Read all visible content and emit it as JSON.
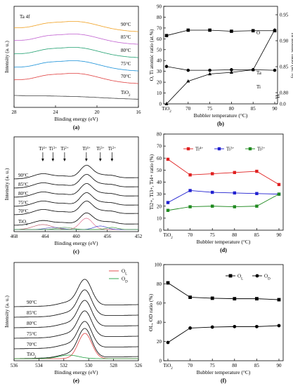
{
  "chart_data": [
    {
      "id": "a",
      "type": "line",
      "panel_label": "(a)",
      "xlabel": "Binding energy (eV)",
      "ylabel": "Intensity (a. u.)",
      "xlim": [
        28,
        16
      ],
      "xticks": [
        28,
        24,
        20,
        16
      ],
      "annotation": "Ta 4f",
      "grid": false,
      "series": [
        {
          "name": "90°C",
          "color": "#f0a020",
          "peak_eV": 22.0,
          "peak_height": 0.55
        },
        {
          "name": "85°C",
          "color": "#c060d0",
          "peak_eV": 22.0,
          "peak_height": 0.55
        },
        {
          "name": "80°C",
          "color": "#20a070",
          "peak_eV": 22.0,
          "peak_height": 0.55
        },
        {
          "name": "75°C",
          "color": "#1890d8",
          "peak_eV": 22.0,
          "peak_height": 0.55
        },
        {
          "name": "70°C",
          "color": "#e04040",
          "peak_eV": 22.0,
          "peak_height": 0.55
        },
        {
          "name": "TiO2",
          "color": "#404040",
          "peak_eV": 22.0,
          "peak_height": 0.05
        }
      ]
    },
    {
      "id": "b",
      "type": "line",
      "panel_label": "(b)",
      "xlabel": "Bubbler temperature (°C)",
      "ylabel": "O, Ti atomic ratio (at.%)",
      "ylabel_right": "Ta atomic ratio (at.%)",
      "categories": [
        "TiO2",
        "70",
        "75",
        "80",
        "85",
        "90"
      ],
      "ylim": [
        0,
        90
      ],
      "yticks": [
        0,
        10,
        20,
        30,
        40,
        50,
        60,
        70,
        80,
        90
      ],
      "ylim_right_upper": [
        0.8,
        0.95
      ],
      "yticks_right": [
        "0.0",
        "0.80",
        "0.85",
        "0.90",
        "0.95"
      ],
      "series": [
        {
          "name": "O",
          "marker": "square",
          "axis": "left",
          "values": [
            63,
            68,
            68,
            67,
            67.5,
            67.5
          ]
        },
        {
          "name": "Ti",
          "marker": "circle",
          "axis": "left",
          "values": [
            34.5,
            31,
            31,
            31.5,
            31.5,
            31
          ]
        },
        {
          "name": "Ta",
          "marker": "triangle",
          "axis": "right",
          "values": [
            0.0,
            0.822,
            0.836,
            0.839,
            0.844,
            0.921
          ]
        }
      ]
    },
    {
      "id": "c",
      "type": "line",
      "panel_label": "(c)",
      "xlabel": "Binding energy (eV)",
      "ylabel": "Intensity (a. u.)",
      "xlim": [
        468,
        452
      ],
      "xticks": [
        468,
        464,
        460,
        456,
        452
      ],
      "curve_labels": [
        "90°C",
        "85°C",
        "80°C",
        "75°C",
        "70°C",
        "TiO2"
      ],
      "peak_labels": [
        {
          "text": "Ti4+",
          "eV": 464.3
        },
        {
          "text": "Ti3+",
          "eV": 463.0
        },
        {
          "text": "Ti2+",
          "eV": 461.5
        },
        {
          "text": "Ti4+",
          "eV": 458.7
        },
        {
          "text": "Ti3+",
          "eV": 456.9
        },
        {
          "text": "Ti2+",
          "eV": 455.4
        }
      ]
    },
    {
      "id": "d",
      "type": "line",
      "panel_label": "(d)",
      "xlabel": "Bubbler temperature (°C)",
      "ylabel": "Ti2+, Ti3+, Ti4+ ratio (%)",
      "categories": [
        "TiO2",
        "70",
        "75",
        "80",
        "85",
        "90"
      ],
      "ylim": [
        0,
        80
      ],
      "yticks": [
        0,
        10,
        20,
        30,
        40,
        50,
        60,
        70,
        80
      ],
      "legend_position": "top",
      "series": [
        {
          "name": "Ti4+",
          "color": "#e02020",
          "values": [
            59,
            46,
            47,
            48,
            49,
            38
          ]
        },
        {
          "name": "Ti3+",
          "color": "#2020d0",
          "values": [
            23,
            33,
            31.5,
            31,
            30.5,
            30
          ]
        },
        {
          "name": "Ti2+",
          "color": "#208a20",
          "values": [
            16.5,
            19.5,
            20,
            19.5,
            20,
            30
          ]
        }
      ]
    },
    {
      "id": "e",
      "type": "line",
      "panel_label": "(e)",
      "xlabel": "Binding energy (eV)",
      "ylabel": "Intensity (a. u.)",
      "xlim": [
        536,
        526
      ],
      "xticks": [
        536,
        534,
        532,
        530,
        528,
        526
      ],
      "curve_labels": [
        "90°C",
        "85°C",
        "80°C",
        "75°C",
        "70°C",
        "TiO2"
      ],
      "legend": [
        "OL",
        "OD"
      ],
      "legend_colors": [
        "#e04040",
        "#20a040"
      ]
    },
    {
      "id": "f",
      "type": "line",
      "panel_label": "(f)",
      "xlabel": "Bubbler temperature (°C)",
      "ylabel": "OL, OD ratio (%)",
      "categories": [
        "TiO2",
        "70",
        "75",
        "80",
        "85",
        "90"
      ],
      "ylim": [
        0,
        100
      ],
      "yticks": [
        0,
        20,
        40,
        60,
        80,
        100
      ],
      "legend_position": "top-right",
      "series": [
        {
          "name": "OL",
          "marker": "square",
          "values": [
            81,
            66,
            65,
            64.5,
            64.5,
            63.5
          ]
        },
        {
          "name": "OD",
          "marker": "circle",
          "values": [
            19,
            34,
            35,
            35.5,
            35.5,
            36.5
          ]
        }
      ]
    }
  ]
}
